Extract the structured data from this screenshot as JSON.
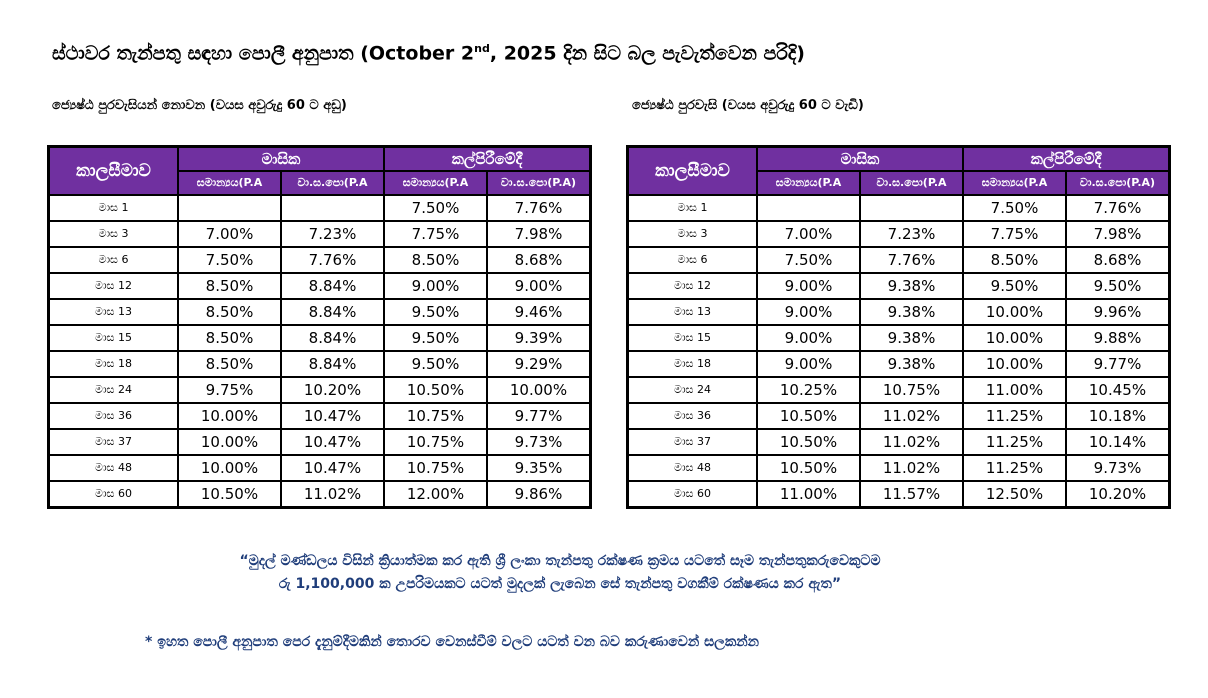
{
  "title_main": "ස්ථාවර තැන්පතු සඳහා පොලී අනුපාත (October  2",
  "title_sup": "nd",
  "title_end": ", 2025 දින සිට බල පැවැත්වෙන පරිදි)",
  "colors": {
    "header_bg": "#7030a0",
    "note_text": "#1f3d7a"
  },
  "headers": {
    "period": "කාලසීමාව",
    "monthly": "මාසික",
    "maturity": "කල්පිරීමේදී",
    "normal": "සමාන්‍යය(P.A",
    "aer": "වා.ස.පො(P.A",
    "normal2": "සමාන්‍යය(P.A",
    "aer2": "වා.ස.පො(P.A)"
  },
  "tables": [
    {
      "heading": "ජ්‍යෙෂ්ඨ පුරවැසියන් නොවන (වයස අවුරුදු 60 ට අඩු)",
      "rows": [
        [
          "මාස 1",
          "",
          "",
          "7.50%",
          "7.76%"
        ],
        [
          "මාස 3",
          "7.00%",
          "7.23%",
          "7.75%",
          "7.98%"
        ],
        [
          "මාස 6",
          "7.50%",
          "7.76%",
          "8.50%",
          "8.68%"
        ],
        [
          "මාස 12",
          "8.50%",
          "8.84%",
          "9.00%",
          "9.00%"
        ],
        [
          "මාස 13",
          "8.50%",
          "8.84%",
          "9.50%",
          "9.46%"
        ],
        [
          "මාස 15",
          "8.50%",
          "8.84%",
          "9.50%",
          "9.39%"
        ],
        [
          "මාස 18",
          "8.50%",
          "8.84%",
          "9.50%",
          "9.29%"
        ],
        [
          "මාස 24",
          "9.75%",
          "10.20%",
          "10.50%",
          "10.00%"
        ],
        [
          "මාස 36",
          "10.00%",
          "10.47%",
          "10.75%",
          "9.77%"
        ],
        [
          "මාස 37",
          "10.00%",
          "10.47%",
          "10.75%",
          "9.73%"
        ],
        [
          "මාස 48",
          "10.00%",
          "10.47%",
          "10.75%",
          "9.35%"
        ],
        [
          "මාස 60",
          "10.50%",
          "11.02%",
          "12.00%",
          "9.86%"
        ]
      ]
    },
    {
      "heading": "ජ්‍යෙෂ්ඨ පුරවැසි (වයස අවුරුදු 60 ට වැඩි)",
      "rows": [
        [
          "මාස 1",
          "",
          "",
          "7.50%",
          "7.76%"
        ],
        [
          "මාස 3",
          "7.00%",
          "7.23%",
          "7.75%",
          "7.98%"
        ],
        [
          "මාස 6",
          "7.50%",
          "7.76%",
          "8.50%",
          "8.68%"
        ],
        [
          "මාස 12",
          "9.00%",
          "9.38%",
          "9.50%",
          "9.50%"
        ],
        [
          "මාස 13",
          "9.00%",
          "9.38%",
          "10.00%",
          "9.96%"
        ],
        [
          "මාස 15",
          "9.00%",
          "9.38%",
          "10.00%",
          "9.88%"
        ],
        [
          "මාස 18",
          "9.00%",
          "9.38%",
          "10.00%",
          "9.77%"
        ],
        [
          "මාස 24",
          "10.25%",
          "10.75%",
          "11.00%",
          "10.45%"
        ],
        [
          "මාස 36",
          "10.50%",
          "11.02%",
          "11.25%",
          "10.18%"
        ],
        [
          "මාස 37",
          "10.50%",
          "11.02%",
          "11.25%",
          "10.14%"
        ],
        [
          "මාස 48",
          "10.50%",
          "11.02%",
          "11.25%",
          "9.73%"
        ],
        [
          "මාස 60",
          "11.00%",
          "11.57%",
          "12.50%",
          "10.20%"
        ]
      ]
    }
  ],
  "quote_line1": "“මුදල් මණ්ඩලය විසින් ක්‍රියාත්මක කර ඇති ශ්‍රී ලංකා තැන්පතු රක්ෂණ ක්‍රමය යටතේ සෑම තැන්පතුකරුවෙකුටම",
  "quote_line2": "රු 1,100,000 ක උපරිමයකට යටත් මුදලක් ලැබෙන සේ තැන්පතු වගකීම් රක්ෂණය කර ඇත”",
  "footnote": "* ඉහත පොලී අනුපාත පෙර දැනුම්දීමකින් තොරව වෙනස්වීම් වලට යටත් වන බව කරුණාවෙන් සලකන්න"
}
